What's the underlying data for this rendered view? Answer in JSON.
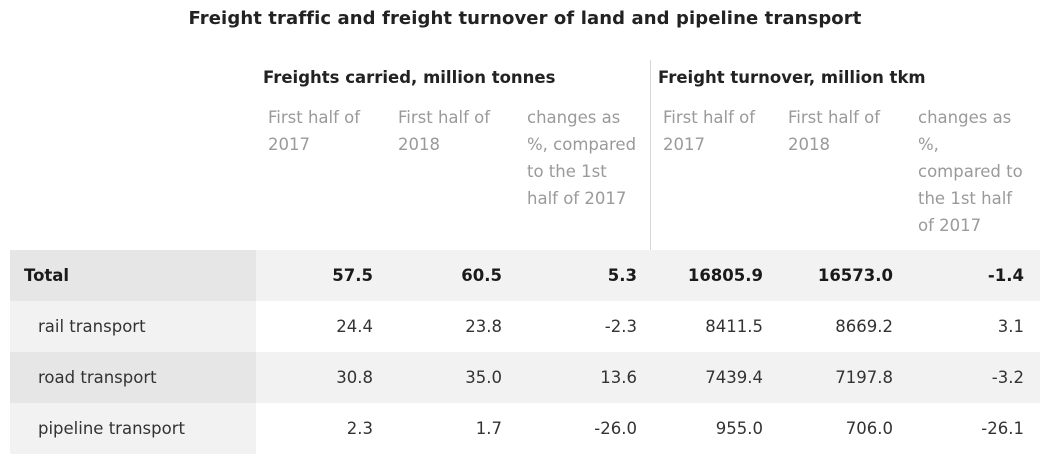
{
  "chart_data": {
    "type": "table",
    "title": "Freight traffic and freight turnover of land and pipeline transport",
    "groups": [
      {
        "label": "Freights carried, million tonnes",
        "columns": [
          "First half of 2017",
          "First half of 2018",
          "changes as %, compared to the 1st half of 2017"
        ]
      },
      {
        "label": "Freight turnover, million tkm",
        "columns": [
          "First half of 2017",
          "First half of 2018",
          "changes as %, compared to the 1st half of 2017"
        ]
      }
    ],
    "rows": [
      {
        "label": "Total",
        "values": [
          "57.5",
          "60.5",
          "5.3",
          "16805.9",
          "16573.0",
          "-1.4"
        ]
      },
      {
        "label": "rail transport",
        "values": [
          "24.4",
          "23.8",
          "-2.3",
          "8411.5",
          "8669.2",
          "3.1"
        ]
      },
      {
        "label": "road transport",
        "values": [
          "30.8",
          "35.0",
          "13.6",
          "7439.4",
          "7197.8",
          "-3.2"
        ]
      },
      {
        "label": "pipeline transport",
        "values": [
          "2.3",
          "1.7",
          "-26.0",
          "955.0",
          "706.0",
          "-26.1"
        ]
      }
    ]
  }
}
